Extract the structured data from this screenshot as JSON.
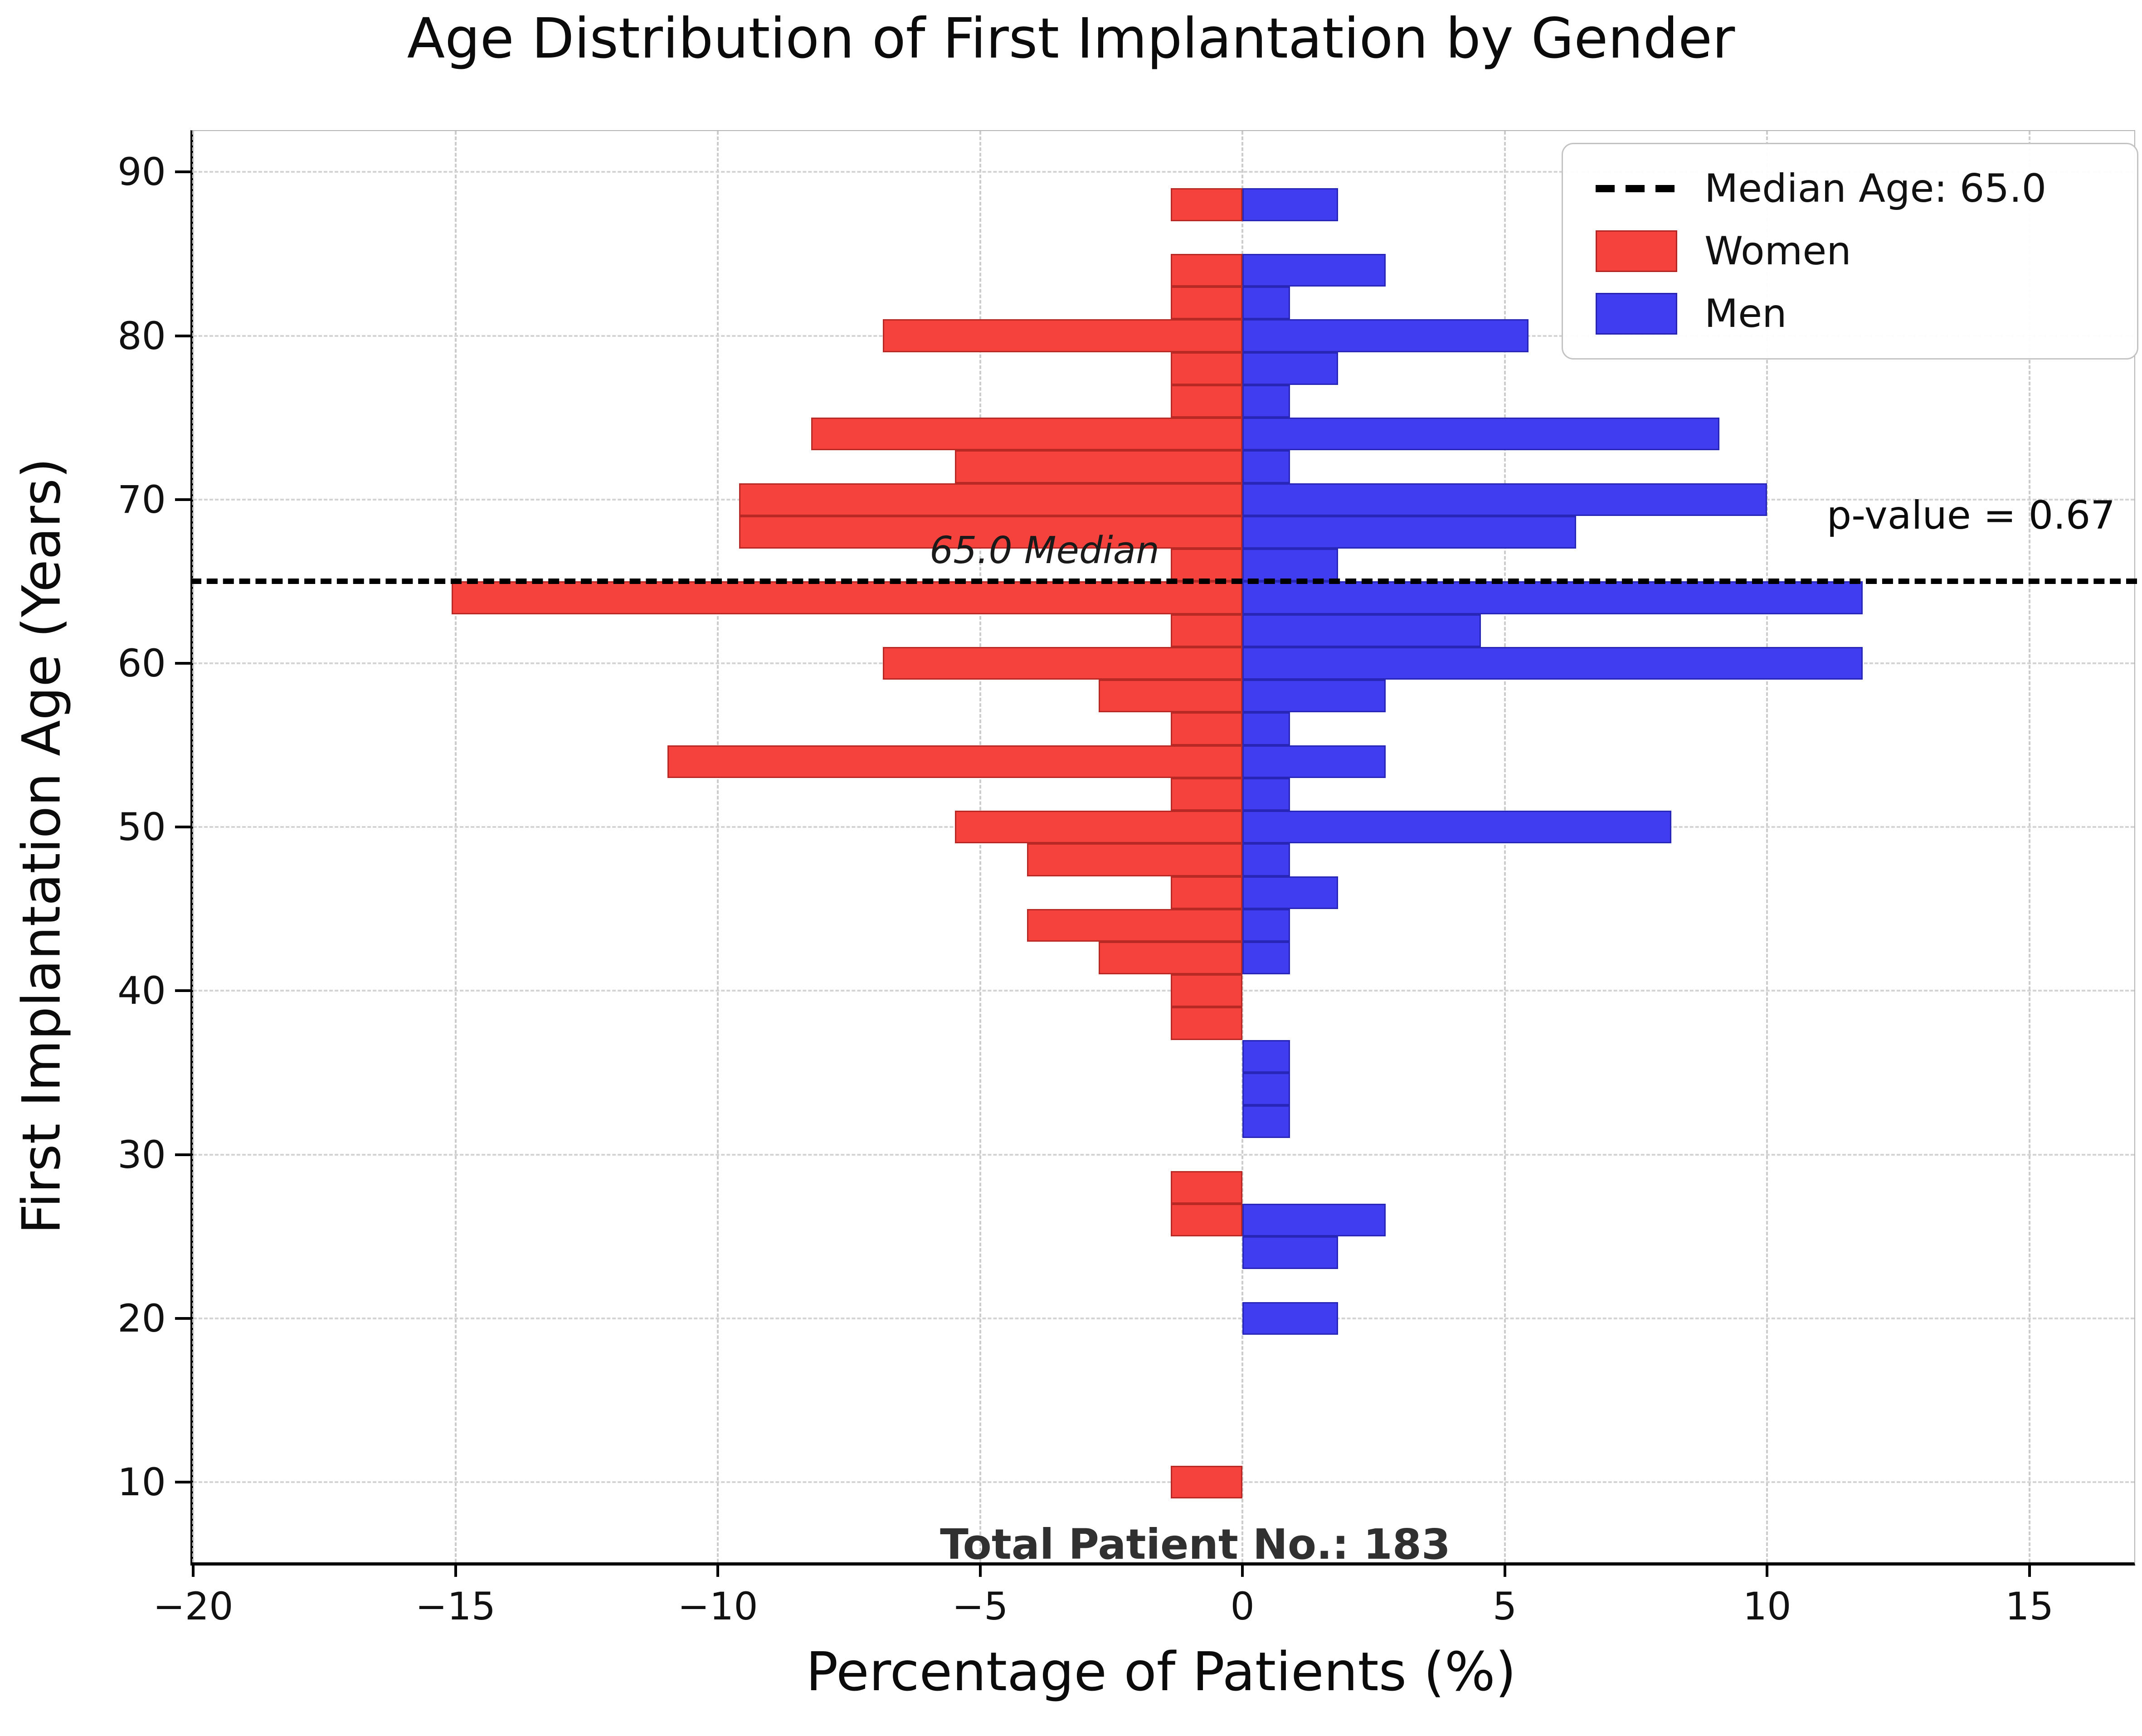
{
  "chart_data": {
    "type": "bar",
    "variant": "population-pyramid-histogram",
    "title": "Age Distribution of First Implantation by Gender",
    "xlabel": "Percentage of Patients (%)",
    "ylabel": "First Implantation Age (Years)",
    "note": "Women bars are plotted toward negative x; values stored as positive magnitudes in percent of patients.",
    "bin_width_years": 2,
    "ages_bin_centers": [
      10,
      12,
      14,
      16,
      18,
      20,
      22,
      24,
      26,
      28,
      30,
      32,
      34,
      36,
      38,
      40,
      42,
      44,
      46,
      48,
      50,
      52,
      54,
      56,
      58,
      60,
      62,
      64,
      66,
      68,
      70,
      72,
      74,
      76,
      78,
      80,
      82,
      84,
      86,
      88
    ],
    "series": [
      {
        "name": "Women",
        "side": "left-negative",
        "color": "#f5423d",
        "values_pct": [
          1.37,
          0,
          0,
          0,
          0,
          0,
          0,
          0,
          1.37,
          1.37,
          0,
          0,
          0,
          0,
          1.37,
          1.37,
          2.74,
          4.11,
          1.37,
          4.11,
          5.48,
          1.37,
          10.96,
          1.37,
          2.74,
          6.85,
          1.37,
          15.07,
          1.37,
          9.59,
          9.59,
          5.48,
          8.22,
          1.37,
          1.37,
          6.85,
          1.37,
          1.37,
          0,
          1.37
        ]
      },
      {
        "name": "Men",
        "side": "right-positive",
        "color": "#403df0",
        "values_pct": [
          0,
          0,
          0,
          0,
          0,
          1.82,
          0,
          1.82,
          2.73,
          0,
          0,
          0.91,
          0.91,
          0.91,
          0,
          0,
          0.91,
          0.91,
          1.82,
          0.91,
          8.18,
          0.91,
          2.73,
          0.91,
          2.73,
          11.82,
          4.55,
          11.82,
          1.82,
          6.36,
          10.0,
          0.91,
          9.09,
          0.91,
          1.82,
          5.45,
          0.91,
          2.73,
          0,
          1.82
        ]
      }
    ],
    "x_ticks": [
      -20,
      -15,
      -10,
      -5,
      0,
      5,
      10,
      15
    ],
    "x_tick_labels": [
      "−20",
      "−15",
      "−10",
      "−5",
      "0",
      "5",
      "10",
      "15"
    ],
    "y_ticks": [
      90,
      80,
      70,
      60,
      50,
      40,
      30,
      20,
      10
    ],
    "xlim": [
      -20.0,
      17.0
    ],
    "ylim": [
      5.1,
      92.5
    ],
    "grid": true,
    "legend_position": "upper right",
    "legend": {
      "median": "Median Age: 65.0",
      "women": "Women",
      "men": "Men"
    },
    "median_age": 65.0,
    "annotations": {
      "median_label": "65.0 Median",
      "p_value": "p-value = 0.67",
      "total_patients": "Total Patient No.: 183"
    },
    "colors": {
      "women": "#f5423d",
      "men": "#403df0",
      "median_line": "#000000",
      "grid": "#cccccc"
    }
  }
}
